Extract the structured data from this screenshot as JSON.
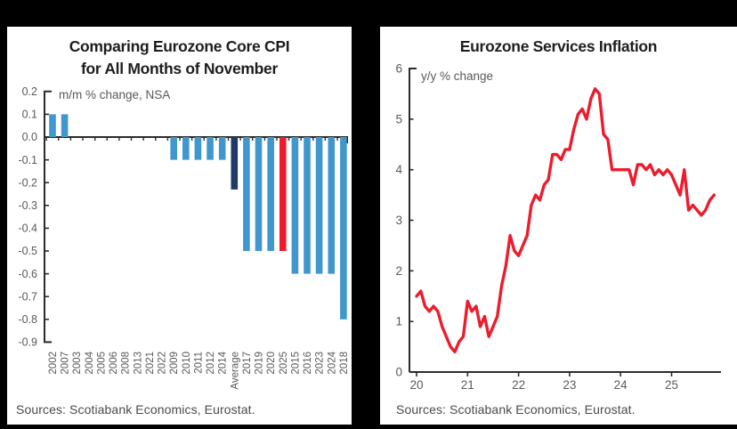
{
  "left_chart": {
    "title_line1": "Comparing Eurozone Core CPI",
    "title_line2": "for All Months of November",
    "annotation": "m/m % change, NSA",
    "source": "Sources: Scotiabank Economics, Eurostat."
  },
  "right_chart": {
    "title": "Eurozone Services Inflation",
    "annotation": "y/y % change",
    "source": "Sources: Scotiabank Economics, Eurostat."
  },
  "colors": {
    "bar_blue": "#3F97CD",
    "bar_navy": "#1F3A68",
    "bar_red": "#ED1C2D",
    "line_red": "#ED1C2D",
    "axis": "#2B2B2B",
    "label_gray": "#595959",
    "title_dark": "#1E1E1E",
    "frame_black": "#000000",
    "panel_white": "#FFFFFF"
  },
  "chart_data": [
    {
      "id": "november-core-cpi",
      "type": "bar",
      "title": "Comparing Eurozone Core CPI for All Months of November",
      "ylabel": "m/m % change, NSA",
      "ylim": [
        -0.9,
        0.2
      ],
      "grid": false,
      "yticks": [
        "0.2",
        "0.1",
        "0.0",
        "-0.1",
        "-0.2",
        "-0.3",
        "-0.4",
        "-0.5",
        "-0.6",
        "-0.7",
        "-0.8",
        "-0.9"
      ],
      "categories": [
        "2002",
        "2007",
        "2003",
        "2004",
        "2005",
        "2006",
        "2008",
        "2013",
        "2021",
        "2022",
        "2009",
        "2010",
        "2011",
        "2012",
        "2014",
        "Average",
        "2017",
        "2019",
        "2020",
        "2025",
        "2015",
        "2016",
        "2023",
        "2024",
        "2018"
      ],
      "values": [
        0.1,
        0.1,
        0.0,
        0.0,
        0.0,
        0.0,
        0.0,
        0.0,
        0.0,
        0.0,
        -0.1,
        -0.1,
        -0.1,
        -0.1,
        -0.1,
        -0.23,
        -0.5,
        -0.5,
        -0.5,
        -0.5,
        -0.6,
        -0.6,
        -0.6,
        -0.6,
        -0.8
      ],
      "bar_colors": [
        "bar_blue",
        "bar_blue",
        "bar_blue",
        "bar_blue",
        "bar_blue",
        "bar_blue",
        "bar_blue",
        "bar_blue",
        "bar_blue",
        "bar_blue",
        "bar_blue",
        "bar_blue",
        "bar_blue",
        "bar_blue",
        "bar_blue",
        "bar_navy",
        "bar_blue",
        "bar_blue",
        "bar_blue",
        "bar_red",
        "bar_blue",
        "bar_blue",
        "bar_blue",
        "bar_blue",
        "bar_blue"
      ]
    },
    {
      "id": "eurozone-services-inflation",
      "type": "line",
      "title": "Eurozone Services Inflation",
      "ylabel": "y/y % change",
      "ylim": [
        0,
        6
      ],
      "grid": false,
      "yticks": [
        "6",
        "5",
        "4",
        "3",
        "2",
        "1",
        "0"
      ],
      "xticks": [
        "20",
        "21",
        "22",
        "23",
        "24",
        "25"
      ],
      "x_start": "2020-01",
      "x_end": "2025-11",
      "frequency": "monthly",
      "values": [
        1.5,
        1.6,
        1.3,
        1.2,
        1.3,
        1.2,
        0.9,
        0.7,
        0.5,
        0.4,
        0.6,
        0.7,
        1.4,
        1.2,
        1.3,
        0.9,
        1.1,
        0.7,
        0.9,
        1.1,
        1.7,
        2.1,
        2.7,
        2.4,
        2.3,
        2.5,
        2.7,
        3.3,
        3.5,
        3.4,
        3.7,
        3.8,
        4.3,
        4.3,
        4.2,
        4.4,
        4.4,
        4.8,
        5.1,
        5.2,
        5.0,
        5.4,
        5.6,
        5.5,
        4.7,
        4.6,
        4.0,
        4.0,
        4.0,
        4.0,
        4.0,
        3.7,
        4.1,
        4.1,
        4.0,
        4.1,
        3.9,
        4.0,
        3.9,
        4.0,
        3.9,
        3.7,
        3.5,
        4.0,
        3.2,
        3.3,
        3.2,
        3.1,
        3.2,
        3.4,
        3.5
      ]
    }
  ]
}
